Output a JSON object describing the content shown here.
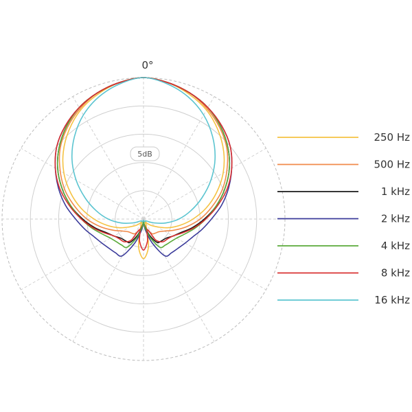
{
  "chart_data": {
    "type": "polar",
    "angle_label": "0°",
    "ring_label": "5dB",
    "rings": 5,
    "spokes_every_deg": 30,
    "grid": true,
    "legend_position": "right",
    "series": [
      {
        "name": "250 Hz",
        "color": "#f5c242",
        "r": [
          1.0,
          0.98,
          0.94,
          0.89,
          0.82,
          0.74,
          0.65,
          0.55,
          0.45,
          0.35,
          0.26,
          0.18,
          0.11,
          0.07,
          0.04,
          0.02,
          0.06,
          0.2,
          0.28
        ]
      },
      {
        "name": "500 Hz",
        "color": "#f08a4a",
        "r": [
          1.0,
          0.98,
          0.95,
          0.9,
          0.84,
          0.77,
          0.68,
          0.59,
          0.49,
          0.4,
          0.31,
          0.23,
          0.17,
          0.14,
          0.13,
          0.12,
          0.08,
          0.04,
          0.03
        ]
      },
      {
        "name": "1 kHz",
        "color": "#1a1a1a",
        "r": [
          1.0,
          0.98,
          0.95,
          0.91,
          0.85,
          0.78,
          0.7,
          0.61,
          0.52,
          0.43,
          0.35,
          0.28,
          0.24,
          0.21,
          0.2,
          0.19,
          0.12,
          0.05,
          0.02
        ]
      },
      {
        "name": "2 kHz",
        "color": "#3a3a9a",
        "r": [
          1.0,
          0.98,
          0.95,
          0.91,
          0.86,
          0.8,
          0.72,
          0.64,
          0.56,
          0.48,
          0.42,
          0.37,
          0.34,
          0.32,
          0.31,
          0.3,
          0.18,
          0.08,
          0.03
        ]
      },
      {
        "name": "4 kHz",
        "color": "#5aaa3a",
        "r": [
          1.0,
          0.98,
          0.95,
          0.91,
          0.85,
          0.78,
          0.7,
          0.61,
          0.52,
          0.44,
          0.37,
          0.31,
          0.27,
          0.25,
          0.24,
          0.23,
          0.14,
          0.06,
          0.02
        ]
      },
      {
        "name": "8 kHz",
        "color": "#d93030",
        "r": [
          1.0,
          0.98,
          0.95,
          0.91,
          0.86,
          0.8,
          0.72,
          0.63,
          0.53,
          0.44,
          0.36,
          0.29,
          0.24,
          0.22,
          0.21,
          0.17,
          0.08,
          0.16,
          0.22
        ]
      },
      {
        "name": "16 kHz",
        "color": "#5bc4d0",
        "r": [
          1.0,
          0.97,
          0.92,
          0.85,
          0.76,
          0.66,
          0.55,
          0.44,
          0.34,
          0.25,
          0.16,
          0.08,
          0.03,
          0.02,
          0.02,
          0.02,
          0.02,
          0.01,
          0.01
        ]
      }
    ]
  }
}
